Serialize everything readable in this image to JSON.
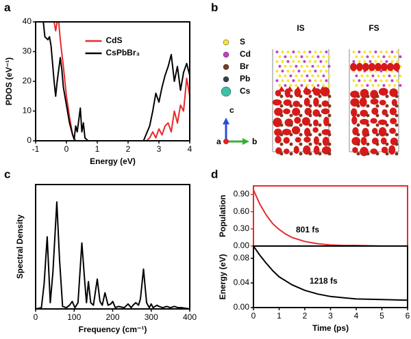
{
  "chart_data": [
    {
      "type": "line",
      "panel": "a",
      "x_label": "Energy (eV)",
      "y_label": "PDOS (eV⁻¹)",
      "xlim": [
        -1,
        4
      ],
      "xticks": [
        -1,
        0,
        1,
        2,
        3,
        4
      ],
      "ylim": [
        0,
        40
      ],
      "yticks": [
        0,
        10,
        20,
        30,
        40
      ],
      "legend": "upper center",
      "series": [
        {
          "name": "CdS",
          "color": "#e8292b",
          "x": [
            -0.4,
            -0.35,
            -0.3,
            -0.25,
            -0.2,
            -0.1,
            0,
            0.1,
            0.2,
            0.3,
            2.6,
            2.7,
            2.8,
            2.9,
            3.0,
            3.1,
            3.2,
            3.3,
            3.4,
            3.5,
            3.6,
            3.7,
            3.8,
            3.9,
            4.0
          ],
          "values": [
            40,
            37,
            40,
            40,
            34,
            25,
            15,
            8,
            2,
            0,
            0,
            1,
            3,
            1,
            4,
            2,
            5,
            6,
            3,
            10,
            6,
            12,
            10,
            21,
            15
          ]
        },
        {
          "name": "CsPbBr₃",
          "color": "#000000",
          "x": [
            -1,
            -0.75,
            -0.7,
            -0.6,
            -0.55,
            -0.5,
            -0.4,
            -0.35,
            -0.3,
            -0.2,
            -0.15,
            -0.1,
            0,
            0.1,
            0.2,
            0.25,
            0.3,
            0.35,
            0.4,
            0.45,
            0.5,
            0.55,
            0.6,
            0.7,
            2.5,
            2.7,
            2.8,
            2.9,
            3.0,
            3.1,
            3.2,
            3.3,
            3.4,
            3.5,
            3.6,
            3.7,
            3.8,
            3.9,
            4.0
          ],
          "values": [
            40,
            40,
            35,
            34,
            35,
            32,
            20,
            15,
            20,
            28,
            24,
            18,
            12,
            6,
            2,
            0.5,
            5,
            3,
            7,
            11,
            3,
            6,
            1,
            0,
            0,
            5,
            10,
            16,
            13,
            18,
            22,
            25,
            29,
            20,
            25,
            17,
            23,
            26,
            22
          ]
        }
      ]
    },
    {
      "type": "line",
      "panel": "c",
      "x_label": "Frequency (cm⁻¹)",
      "y_label": "Spectral Density",
      "xlim": [
        0,
        400
      ],
      "xticks": [
        0,
        100,
        200,
        300,
        400
      ],
      "ylim": [
        0,
        1
      ],
      "series": [
        {
          "color": "#000000",
          "x": [
            0,
            15,
            22,
            30,
            38,
            45,
            55,
            62,
            70,
            80,
            88,
            95,
            102,
            110,
            120,
            128,
            132,
            137,
            143,
            150,
            160,
            167,
            173,
            180,
            188,
            195,
            200,
            207,
            215,
            230,
            240,
            248,
            253,
            260,
            267,
            272,
            280,
            288,
            295,
            300,
            305,
            315,
            320,
            330,
            340,
            350,
            360,
            370,
            380,
            400
          ],
          "values": [
            0,
            0.01,
            0.2,
            0.58,
            0.05,
            0.3,
            0.86,
            0.4,
            0.02,
            0.01,
            0.03,
            0.06,
            0.01,
            0.05,
            0.53,
            0.2,
            0.05,
            0.22,
            0.05,
            0.03,
            0.24,
            0.06,
            0.03,
            0.13,
            0.03,
            0.04,
            0.06,
            0.01,
            0.02,
            0.01,
            0.04,
            0.01,
            0.03,
            0.05,
            0.03,
            0.08,
            0.32,
            0.05,
            0.01,
            0.04,
            0.01,
            0.03,
            0.02,
            0.01,
            0.02,
            0.01,
            0.02,
            0.01,
            0.01,
            0
          ]
        }
      ]
    },
    {
      "type": "line",
      "panel": "d",
      "y_label": "Population",
      "annotation": "801 fs",
      "axis_color": "#e8292b",
      "xlim": [
        0,
        6
      ],
      "ylim": [
        0,
        1.05
      ],
      "yticks": [
        {
          "value": 0,
          "label": "0.00"
        },
        {
          "value": 0.3,
          "label": "0.30"
        },
        {
          "value": 0.6,
          "label": "0.60"
        },
        {
          "value": 0.9,
          "label": "0.90"
        }
      ],
      "series": [
        {
          "color": "#e8292b",
          "x": [
            0,
            0.25,
            0.5,
            0.75,
            1,
            1.25,
            1.5,
            2,
            2.5,
            3,
            3.5,
            4,
            5,
            6
          ],
          "values": [
            0.98,
            0.73,
            0.54,
            0.39,
            0.29,
            0.21,
            0.15,
            0.08,
            0.04,
            0.02,
            0.01,
            0.01,
            0,
            0
          ]
        }
      ]
    },
    {
      "type": "line",
      "x_label": "Time (ps)",
      "y_label": "Energy (eV)",
      "annotation": "1218 fs",
      "xlim": [
        0,
        6
      ],
      "xticks": [
        0,
        1,
        2,
        3,
        4,
        5,
        6
      ],
      "ylim": [
        0,
        0.1
      ],
      "yticks": [
        {
          "value": 0,
          "label": "0.00"
        },
        {
          "value": 0.04,
          "label": "0.04"
        },
        {
          "value": 0.08,
          "label": "0.08"
        }
      ],
      "series": [
        {
          "color": "#000000",
          "x": [
            0,
            0.25,
            0.5,
            0.75,
            1,
            1.5,
            2,
            2.5,
            3,
            3.5,
            4,
            5,
            6
          ],
          "values": [
            0.1,
            0.085,
            0.072,
            0.06,
            0.05,
            0.037,
            0.028,
            0.022,
            0.018,
            0.016,
            0.014,
            0.013,
            0.012
          ]
        }
      ]
    }
  ],
  "structure": {
    "panel": "b",
    "states": [
      "IS",
      "FS"
    ],
    "axes": [
      "c",
      "a",
      "b"
    ],
    "legend": [
      {
        "label": "S",
        "color": "#f2e632"
      },
      {
        "label": "Cd",
        "color": "#c23fbf"
      },
      {
        "label": "Br",
        "color": "#7a3b1e"
      },
      {
        "label": "Pb",
        "color": "#3c3c46"
      },
      {
        "label": "Cs",
        "color": "#3cc0a8"
      }
    ]
  }
}
